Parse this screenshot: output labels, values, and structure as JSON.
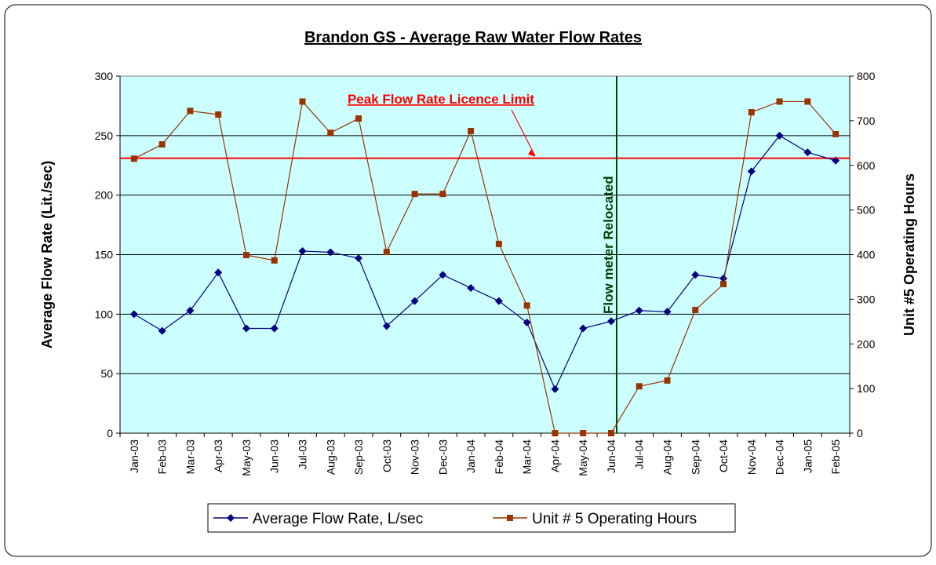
{
  "chart_data": {
    "type": "line",
    "title": "Brandon GS - Average Raw Water Flow Rates",
    "ylabel": "Average Flow Rate (Lit./sec)",
    "y2label": "Unit #5 Operating Hours",
    "categories": [
      "Jan-03",
      "Feb-03",
      "Mar-03",
      "Apr-03",
      "May-03",
      "Jun-03",
      "Jul-03",
      "Aug-03",
      "Sep-03",
      "Oct-03",
      "Nov-03",
      "Dec-03",
      "Jan-04",
      "Feb-04",
      "Mar-04",
      "Apr-04",
      "May-04",
      "Jun-04",
      "Jul-04",
      "Aug-04",
      "Sep-04",
      "Oct-04",
      "Nov-04",
      "Dec-04",
      "Jan-05",
      "Feb-05"
    ],
    "series": [
      {
        "name": "Average Flow Rate, L/sec",
        "color": "#000080",
        "marker": "diamond",
        "values": [
          100,
          86,
          103,
          135,
          88,
          88,
          153,
          152,
          147,
          90,
          111,
          133,
          122,
          111,
          93,
          37,
          88,
          94,
          103,
          102,
          133,
          130,
          220,
          250,
          236,
          229
        ]
      },
      {
        "name": "Unit # 5 Operating Hours",
        "color": "#993300",
        "marker": "square",
        "axis": "y2",
        "values": [
          615,
          647,
          722,
          714,
          399,
          387,
          743,
          673,
          705,
          406,
          536,
          536,
          677,
          424,
          286,
          0,
          0,
          0,
          105,
          118,
          276,
          334,
          719,
          743,
          743,
          670
        ]
      }
    ],
    "ylim": [
      0,
      300
    ],
    "yticks": [
      0,
      50,
      100,
      150,
      200,
      250,
      300
    ],
    "y2lim": [
      0,
      800
    ],
    "y2ticks": [
      0,
      100,
      200,
      300,
      400,
      500,
      600,
      700,
      800
    ],
    "grid": true,
    "legend": "bottom",
    "limit_line": {
      "value": 231,
      "label": "Peak Flow Rate Licence Limit",
      "color": "#ff0000"
    },
    "vertical_annotation": {
      "label": "Flow meter Relocated",
      "color": "#004000"
    }
  }
}
